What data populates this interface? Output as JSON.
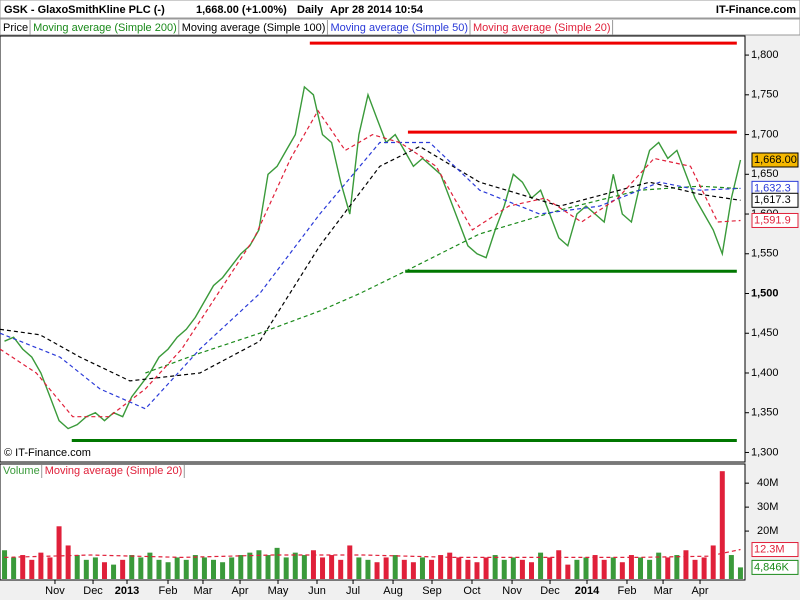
{
  "chart_data": {
    "type": "stock",
    "title": "GSK - GlaxoSmithKline PLC (-)",
    "quote": "1,668.00 (+1.00%)",
    "period": "Daily",
    "timestamp": "Apr 28 2014 10:54",
    "brand": "IT-Finance.com",
    "copyright": "© IT-Finance.com",
    "xlim": [
      0,
      82
    ],
    "xticks": [
      {
        "value": 6.05,
        "label": "Nov"
      },
      {
        "value": 10.24,
        "label": "Dec"
      },
      {
        "value": 13.98,
        "label": "2013"
      },
      {
        "value": 18.49,
        "label": "Feb"
      },
      {
        "value": 22.34,
        "label": "Mar"
      },
      {
        "value": 26.42,
        "label": "Apr"
      },
      {
        "value": 30.6,
        "label": "May"
      },
      {
        "value": 34.89,
        "label": "Jun"
      },
      {
        "value": 38.86,
        "label": "Jul"
      },
      {
        "value": 43.26,
        "label": "Aug"
      },
      {
        "value": 47.55,
        "label": "Sep"
      },
      {
        "value": 51.95,
        "label": "Oct"
      },
      {
        "value": 56.36,
        "label": "Nov"
      },
      {
        "value": 60.54,
        "label": "Dec"
      },
      {
        "value": 64.61,
        "label": "2014"
      },
      {
        "value": 69.01,
        "label": "Feb"
      },
      {
        "value": 72.98,
        "label": "Mar"
      },
      {
        "value": 77.05,
        "label": "Apr"
      }
    ],
    "ylim": [
      1288,
      1824
    ],
    "yticks": [
      {
        "value": 1300,
        "label": "1,300"
      },
      {
        "value": 1350,
        "label": "1,350"
      },
      {
        "value": 1400,
        "label": "1,400"
      },
      {
        "value": 1450,
        "label": "1,450"
      },
      {
        "value": 1500,
        "label": "1,500"
      },
      {
        "value": 1550,
        "label": "1,550"
      },
      {
        "value": 1600,
        "label": "1,600"
      },
      {
        "value": 1650,
        "label": "1,650"
      },
      {
        "value": 1700,
        "label": "1,700"
      },
      {
        "value": 1750,
        "label": "1,750"
      },
      {
        "value": 1800,
        "label": "1,800"
      }
    ],
    "series": [
      {
        "name": "Price",
        "color": "#3a9a3a",
        "values": [
          1440,
          1445,
          1430,
          1420,
          1400,
          1370,
          1340,
          1330,
          1335,
          1345,
          1350,
          1340,
          1350,
          1345,
          1370,
          1385,
          1400,
          1420,
          1430,
          1445,
          1455,
          1470,
          1490,
          1510,
          1520,
          1535,
          1550,
          1560,
          1580,
          1650,
          1660,
          1680,
          1700,
          1760,
          1750,
          1700,
          1690,
          1640,
          1600,
          1700,
          1750,
          1720,
          1690,
          1700,
          1680,
          1660,
          1670,
          1660,
          1650,
          1620,
          1590,
          1560,
          1550,
          1545,
          1580,
          1610,
          1650,
          1640,
          1620,
          1630,
          1600,
          1570,
          1560,
          1600,
          1610,
          1600,
          1590,
          1650,
          1600,
          1590,
          1640,
          1680,
          1690,
          1670,
          1680,
          1650,
          1620,
          1600,
          1580,
          1550,
          1620,
          1668
        ]
      },
      {
        "name": "Moving average (Simple 200)",
        "color": "#1a8a1a",
        "x": [
          16,
          22,
          28.6,
          35.2,
          39.6,
          44.6,
          52.8,
          61.6,
          70.4,
          77,
          81.5
        ],
        "values": [
          1400,
          1425,
          1450,
          1478,
          1500,
          1528,
          1575,
          1605,
          1630,
          1635,
          1632
        ]
      },
      {
        "name": "Moving average (Simple 100)",
        "color": "#000000",
        "x": [
          0,
          4.4,
          8.8,
          14.3,
          22,
          28.6,
          35.2,
          41.8,
          46.2,
          52.8,
          61.6,
          71.5,
          77,
          81.5
        ],
        "values": [
          1455,
          1448,
          1420,
          1390,
          1400,
          1440,
          1560,
          1660,
          1685,
          1640,
          1610,
          1640,
          1625,
          1617.3
        ]
      },
      {
        "name": "Moving average (Simple 50)",
        "color": "#2a3ad8",
        "x": [
          0,
          6.6,
          11,
          16,
          22,
          28.6,
          35.2,
          41.8,
          47.3,
          52.8,
          59.4,
          66,
          72.6,
          77,
          81.5
        ],
        "values": [
          1450,
          1420,
          1380,
          1355,
          1430,
          1500,
          1600,
          1690,
          1690,
          1630,
          1600,
          1610,
          1640,
          1630,
          1632.3
        ]
      },
      {
        "name": "Moving average (Simple 20)",
        "color": "#e0203a",
        "x": [
          0,
          4,
          8,
          12,
          16,
          20,
          24,
          28,
          32,
          35,
          38,
          41,
          44,
          48,
          52,
          56,
          60,
          64,
          68,
          72,
          76,
          79,
          81.5
        ],
        "values": [
          1430,
          1400,
          1345,
          1345,
          1380,
          1430,
          1500,
          1570,
          1670,
          1730,
          1680,
          1700,
          1690,
          1660,
          1580,
          1610,
          1620,
          1590,
          1620,
          1670,
          1660,
          1590,
          1591.9
        ]
      }
    ],
    "last_labels": [
      {
        "value": 1668,
        "label": "1,668.00",
        "color": "#000000",
        "background": "#f5b800"
      },
      {
        "value": 1632.3,
        "label": "1,632.3",
        "color": "#2a3ad8",
        "background": "#ffffff"
      },
      {
        "value": 1617.3,
        "label": "1,617.3",
        "color": "#000000",
        "background": "#ffffff"
      },
      {
        "value": 1591.9,
        "label": "1,591.9",
        "color": "#e0203a",
        "background": "#ffffff"
      }
    ],
    "levels": [
      {
        "value": 1815,
        "x0": 34.1,
        "x1": 81.1,
        "color": "#ee0000"
      },
      {
        "value": 1703,
        "x0": 44.9,
        "x1": 81.1,
        "color": "#ee0000"
      },
      {
        "value": 1528,
        "x0": 44.6,
        "x1": 81.1,
        "color": "#007700"
      },
      {
        "value": 1315,
        "x0": 7.9,
        "x1": 81.1,
        "color": "#007700"
      }
    ],
    "volume": {
      "ylim": [
        0,
        48
      ],
      "yticks": [
        {
          "value": 20,
          "label": "20M"
        },
        {
          "value": 30,
          "label": "30M"
        },
        {
          "value": 40,
          "label": "40M"
        }
      ],
      "series": [
        {
          "name": "Volume",
          "color": "#3a9a3a",
          "values": [
            12,
            9,
            10,
            8,
            11,
            9,
            22,
            14,
            10,
            8,
            9,
            7,
            6,
            8,
            10,
            9,
            11,
            8,
            7,
            9,
            8,
            10,
            9,
            8,
            7,
            9,
            10,
            11,
            12,
            10,
            13,
            9,
            11,
            10,
            12,
            9,
            10,
            8,
            14,
            9,
            8,
            7,
            9,
            10,
            8,
            7,
            9,
            8,
            10,
            11,
            9,
            8,
            7,
            9,
            10,
            8,
            9,
            8,
            7,
            11,
            9,
            12,
            6,
            8,
            9,
            10,
            8,
            9,
            7,
            10,
            9,
            8,
            11,
            9,
            10,
            12,
            8,
            9,
            14,
            45,
            10,
            4.846
          ]
        },
        {
          "name": "Moving average (Simple 20)",
          "color": "#e0203a",
          "x": [
            0.5,
            10,
            20,
            30,
            40,
            50,
            60,
            70,
            78,
            81.5
          ],
          "values": [
            9,
            10,
            9,
            10,
            10,
            9,
            9,
            9,
            9.5,
            12.3
          ]
        }
      ],
      "last_labels": [
        {
          "value": 12.3,
          "label": "12.3M",
          "color": "#e0203a",
          "background": "#ffffff"
        },
        {
          "value": 4.846,
          "label": "4,846K",
          "color": "#1a8a1a",
          "background": "#ffffff"
        }
      ]
    }
  }
}
